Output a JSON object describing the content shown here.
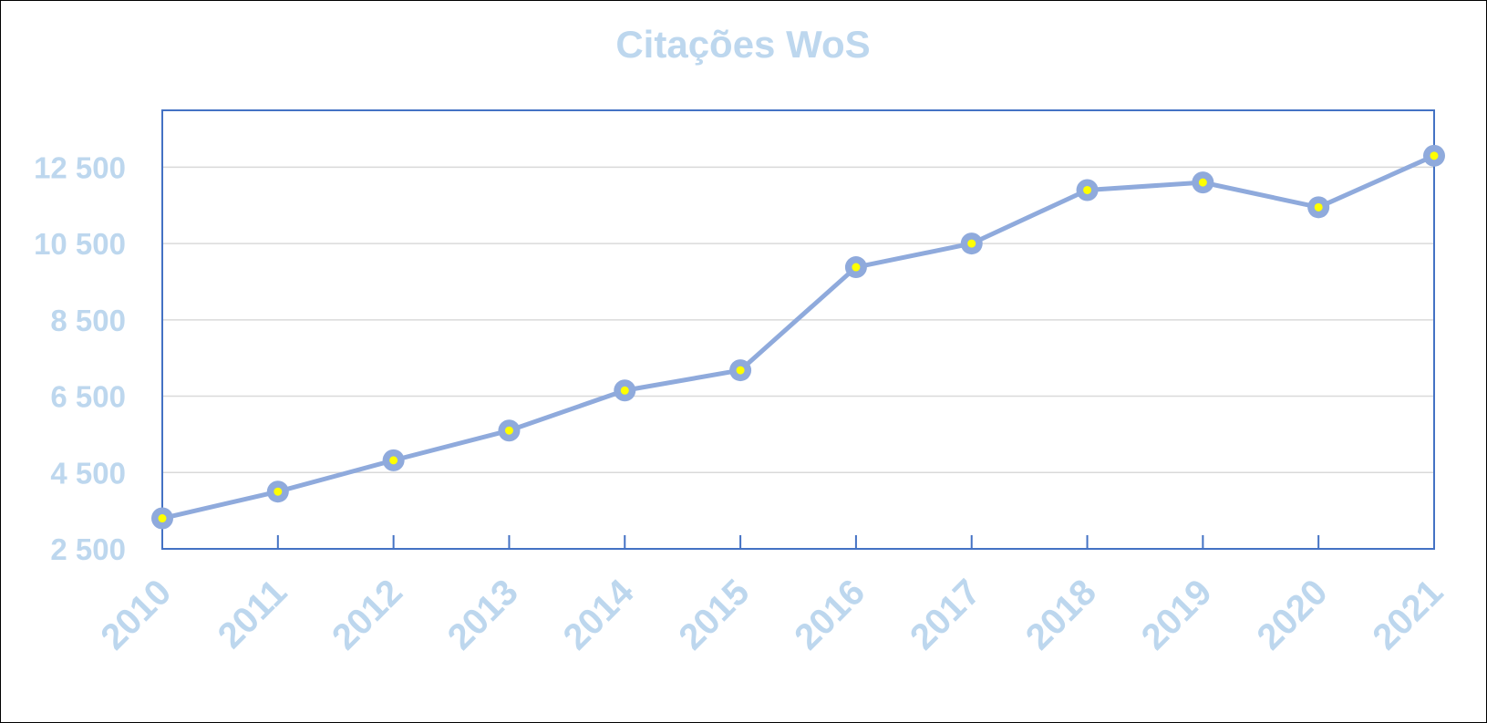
{
  "chart_data": {
    "type": "line",
    "title": "Citações WoS",
    "xlabel": "",
    "ylabel": "",
    "categories": [
      "2010",
      "2011",
      "2012",
      "2013",
      "2014",
      "2015",
      "2016",
      "2017",
      "2018",
      "2019",
      "2020",
      "2021"
    ],
    "series": [
      {
        "values": [
          3300,
          4000,
          4820,
          5600,
          6650,
          7180,
          9880,
          10500,
          11900,
          12100,
          11450,
          12800
        ]
      }
    ],
    "ylim": [
      2500,
      13990
    ],
    "yticks": [
      2500,
      4500,
      6500,
      8500,
      10500,
      12500
    ],
    "ytick_labels": [
      "2 500",
      "4 500",
      "6 500",
      "8 500",
      "10 500",
      "12 500"
    ],
    "grid": true,
    "legend": "none",
    "colors": {
      "line": "#8faadc",
      "marker_center": "#ffff00",
      "text": "#bdd7ee",
      "axis": "#4472c4",
      "gridline": "#d9d9d9"
    }
  }
}
